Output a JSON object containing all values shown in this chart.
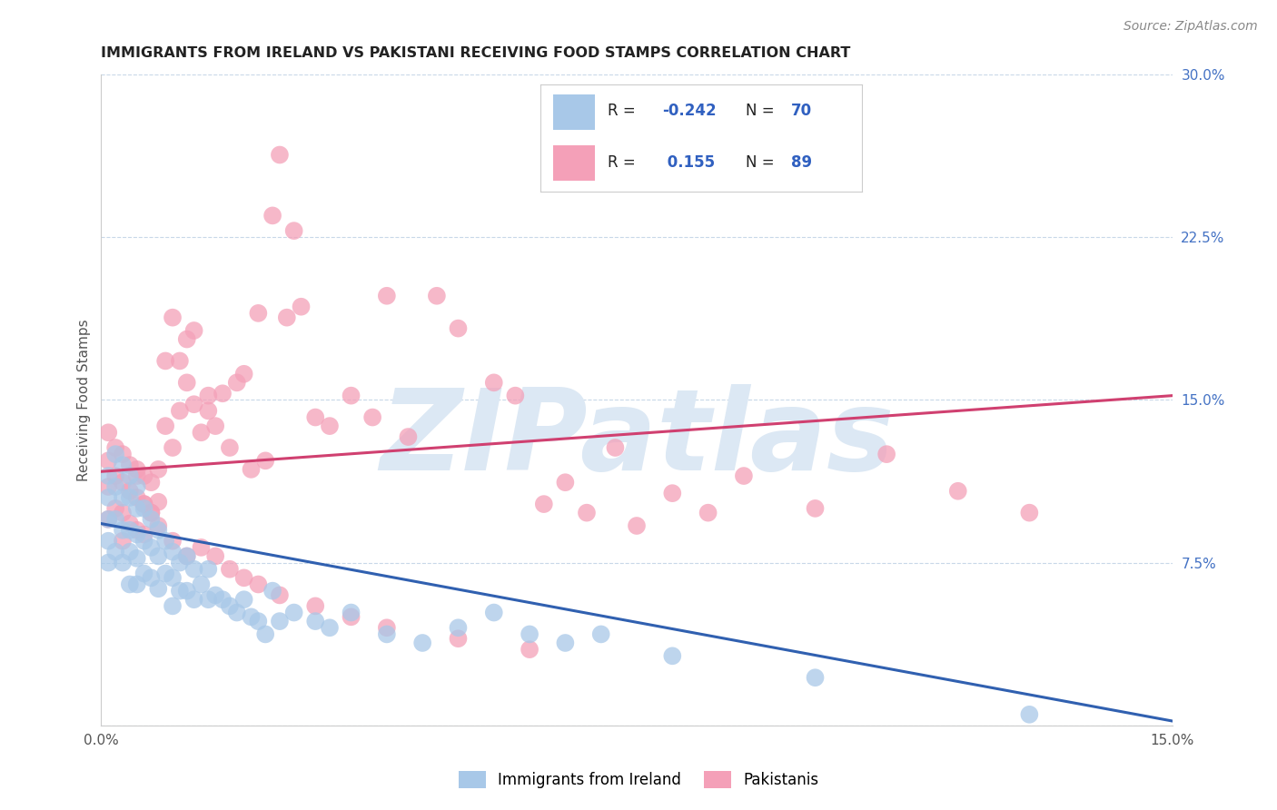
{
  "title": "IMMIGRANTS FROM IRELAND VS PAKISTANI RECEIVING FOOD STAMPS CORRELATION CHART",
  "source": "Source: ZipAtlas.com",
  "ylabel_label": "Receiving Food Stamps",
  "xmin": 0.0,
  "xmax": 0.15,
  "ymin": 0.0,
  "ymax": 0.3,
  "yticks": [
    0.0,
    0.075,
    0.15,
    0.225,
    0.3
  ],
  "ytick_labels": [
    "",
    "7.5%",
    "15.0%",
    "22.5%",
    "30.0%"
  ],
  "xticks": [
    0.0,
    0.05,
    0.1,
    0.15
  ],
  "xtick_labels": [
    "0.0%",
    "",
    "",
    "15.0%"
  ],
  "ireland_R": -0.242,
  "ireland_N": 70,
  "pakistan_R": 0.155,
  "pakistan_N": 89,
  "ireland_color": "#a8c8e8",
  "pakistan_color": "#f4a0b8",
  "ireland_line_color": "#3060b0",
  "pakistan_line_color": "#d04070",
  "watermark_color": "#dce8f4",
  "background_color": "#ffffff",
  "ireland_line_x0": 0.0,
  "ireland_line_y0": 0.093,
  "ireland_line_x1": 0.15,
  "ireland_line_y1": 0.002,
  "pakistan_line_x0": 0.0,
  "pakistan_line_y0": 0.117,
  "pakistan_line_x1": 0.15,
  "pakistan_line_y1": 0.152,
  "ireland_scatter_x": [
    0.001,
    0.001,
    0.001,
    0.001,
    0.001,
    0.002,
    0.002,
    0.002,
    0.002,
    0.003,
    0.003,
    0.003,
    0.003,
    0.004,
    0.004,
    0.004,
    0.004,
    0.004,
    0.005,
    0.005,
    0.005,
    0.005,
    0.005,
    0.006,
    0.006,
    0.006,
    0.007,
    0.007,
    0.007,
    0.008,
    0.008,
    0.008,
    0.009,
    0.009,
    0.01,
    0.01,
    0.01,
    0.011,
    0.011,
    0.012,
    0.012,
    0.013,
    0.013,
    0.014,
    0.015,
    0.015,
    0.016,
    0.017,
    0.018,
    0.019,
    0.02,
    0.021,
    0.022,
    0.023,
    0.024,
    0.025,
    0.027,
    0.03,
    0.032,
    0.035,
    0.04,
    0.045,
    0.05,
    0.055,
    0.06,
    0.065,
    0.07,
    0.08,
    0.1,
    0.13
  ],
  "ireland_scatter_y": [
    0.115,
    0.105,
    0.095,
    0.085,
    0.075,
    0.125,
    0.11,
    0.095,
    0.08,
    0.12,
    0.105,
    0.09,
    0.075,
    0.115,
    0.105,
    0.09,
    0.08,
    0.065,
    0.11,
    0.1,
    0.088,
    0.077,
    0.065,
    0.1,
    0.085,
    0.07,
    0.095,
    0.082,
    0.068,
    0.09,
    0.078,
    0.063,
    0.085,
    0.07,
    0.08,
    0.068,
    0.055,
    0.075,
    0.062,
    0.078,
    0.062,
    0.072,
    0.058,
    0.065,
    0.072,
    0.058,
    0.06,
    0.058,
    0.055,
    0.052,
    0.058,
    0.05,
    0.048,
    0.042,
    0.062,
    0.048,
    0.052,
    0.048,
    0.045,
    0.052,
    0.042,
    0.038,
    0.045,
    0.052,
    0.042,
    0.038,
    0.042,
    0.032,
    0.022,
    0.005
  ],
  "pakistan_scatter_x": [
    0.001,
    0.001,
    0.001,
    0.001,
    0.002,
    0.002,
    0.002,
    0.003,
    0.003,
    0.003,
    0.003,
    0.004,
    0.004,
    0.004,
    0.005,
    0.005,
    0.005,
    0.006,
    0.006,
    0.006,
    0.007,
    0.007,
    0.008,
    0.008,
    0.009,
    0.009,
    0.01,
    0.01,
    0.011,
    0.011,
    0.012,
    0.012,
    0.013,
    0.013,
    0.014,
    0.015,
    0.015,
    0.016,
    0.017,
    0.018,
    0.019,
    0.02,
    0.021,
    0.022,
    0.023,
    0.024,
    0.025,
    0.026,
    0.027,
    0.028,
    0.03,
    0.032,
    0.035,
    0.038,
    0.04,
    0.043,
    0.047,
    0.05,
    0.055,
    0.058,
    0.062,
    0.065,
    0.068,
    0.072,
    0.075,
    0.08,
    0.085,
    0.09,
    0.1,
    0.11,
    0.12,
    0.13,
    0.005,
    0.006,
    0.007,
    0.008,
    0.01,
    0.012,
    0.014,
    0.016,
    0.018,
    0.02,
    0.022,
    0.025,
    0.03,
    0.035,
    0.04,
    0.05,
    0.06
  ],
  "pakistan_scatter_y": [
    0.135,
    0.122,
    0.11,
    0.095,
    0.128,
    0.115,
    0.1,
    0.125,
    0.112,
    0.098,
    0.085,
    0.12,
    0.108,
    0.093,
    0.118,
    0.105,
    0.09,
    0.115,
    0.102,
    0.088,
    0.112,
    0.098,
    0.118,
    0.103,
    0.138,
    0.168,
    0.128,
    0.188,
    0.145,
    0.168,
    0.158,
    0.178,
    0.182,
    0.148,
    0.135,
    0.145,
    0.152,
    0.138,
    0.153,
    0.128,
    0.158,
    0.162,
    0.118,
    0.19,
    0.122,
    0.235,
    0.263,
    0.188,
    0.228,
    0.193,
    0.142,
    0.138,
    0.152,
    0.142,
    0.198,
    0.133,
    0.198,
    0.183,
    0.158,
    0.152,
    0.102,
    0.112,
    0.098,
    0.128,
    0.092,
    0.107,
    0.098,
    0.115,
    0.1,
    0.125,
    0.108,
    0.098,
    0.115,
    0.102,
    0.098,
    0.092,
    0.085,
    0.078,
    0.082,
    0.078,
    0.072,
    0.068,
    0.065,
    0.06,
    0.055,
    0.05,
    0.045,
    0.04,
    0.035
  ]
}
